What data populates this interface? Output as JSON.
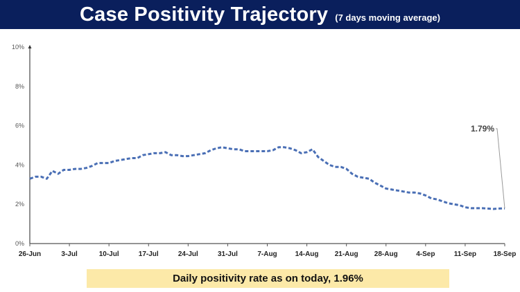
{
  "header": {
    "title": "Case Positivity Trajectory",
    "subtitle": "(7 days moving average)"
  },
  "banner": {
    "text": "Daily positivity rate as on today, 1.96%"
  },
  "chart_data": {
    "type": "line",
    "title": "Case Positivity Trajectory",
    "subtitle": "(7 days moving average)",
    "xlabel": "",
    "ylabel": "",
    "ylim": [
      0,
      10
    ],
    "y_ticks": [
      "0%",
      "2%",
      "4%",
      "6%",
      "8%",
      "10%"
    ],
    "x_ticks": [
      "26-Jun",
      "3-Jul",
      "10-Jul",
      "17-Jul",
      "24-Jul",
      "31-Jul",
      "7-Aug",
      "14-Aug",
      "21-Aug",
      "28-Aug",
      "4-Sep",
      "11-Sep",
      "18-Sep"
    ],
    "grid": false,
    "line_color": "#4a6fb5",
    "line_style": "dashed",
    "x": [
      "26-Jun",
      "27-Jun",
      "28-Jun",
      "29-Jun",
      "30-Jun",
      "1-Jul",
      "2-Jul",
      "3-Jul",
      "4-Jul",
      "5-Jul",
      "6-Jul",
      "7-Jul",
      "8-Jul",
      "9-Jul",
      "10-Jul",
      "11-Jul",
      "12-Jul",
      "13-Jul",
      "14-Jul",
      "15-Jul",
      "16-Jul",
      "17-Jul",
      "18-Jul",
      "19-Jul",
      "20-Jul",
      "21-Jul",
      "22-Jul",
      "23-Jul",
      "24-Jul",
      "25-Jul",
      "26-Jul",
      "27-Jul",
      "28-Jul",
      "29-Jul",
      "30-Jul",
      "31-Jul",
      "1-Aug",
      "2-Aug",
      "3-Aug",
      "4-Aug",
      "5-Aug",
      "6-Aug",
      "7-Aug",
      "8-Aug",
      "9-Aug",
      "10-Aug",
      "11-Aug",
      "12-Aug",
      "13-Aug",
      "14-Aug",
      "15-Aug",
      "16-Aug",
      "17-Aug",
      "18-Aug",
      "19-Aug",
      "20-Aug",
      "21-Aug",
      "22-Aug",
      "23-Aug",
      "24-Aug",
      "25-Aug",
      "26-Aug",
      "27-Aug",
      "28-Aug",
      "29-Aug",
      "30-Aug",
      "31-Aug",
      "1-Sep",
      "2-Sep",
      "3-Sep",
      "4-Sep",
      "5-Sep",
      "6-Sep",
      "7-Sep",
      "8-Sep",
      "9-Sep",
      "10-Sep",
      "11-Sep",
      "12-Sep",
      "13-Sep",
      "14-Sep",
      "15-Sep",
      "16-Sep",
      "17-Sep",
      "18-Sep"
    ],
    "values": [
      3.3,
      3.4,
      3.4,
      3.3,
      3.7,
      3.55,
      3.75,
      3.75,
      3.8,
      3.8,
      3.85,
      3.95,
      4.1,
      4.1,
      4.1,
      4.2,
      4.25,
      4.3,
      4.35,
      4.35,
      4.5,
      4.55,
      4.6,
      4.6,
      4.65,
      4.5,
      4.5,
      4.45,
      4.45,
      4.5,
      4.55,
      4.6,
      4.75,
      4.85,
      4.9,
      4.85,
      4.8,
      4.8,
      4.7,
      4.7,
      4.7,
      4.7,
      4.7,
      4.75,
      4.9,
      4.9,
      4.85,
      4.75,
      4.6,
      4.65,
      4.8,
      4.4,
      4.2,
      4.0,
      3.9,
      3.9,
      3.8,
      3.55,
      3.4,
      3.35,
      3.3,
      3.1,
      2.95,
      2.8,
      2.75,
      2.7,
      2.65,
      2.6,
      2.6,
      2.55,
      2.45,
      2.3,
      2.25,
      2.15,
      2.05,
      2.0,
      1.95,
      1.85,
      1.8,
      1.8,
      1.8,
      1.78,
      1.76,
      1.78,
      1.79
    ],
    "annotation": {
      "label": "1.79%",
      "at": "18-Sep"
    }
  }
}
